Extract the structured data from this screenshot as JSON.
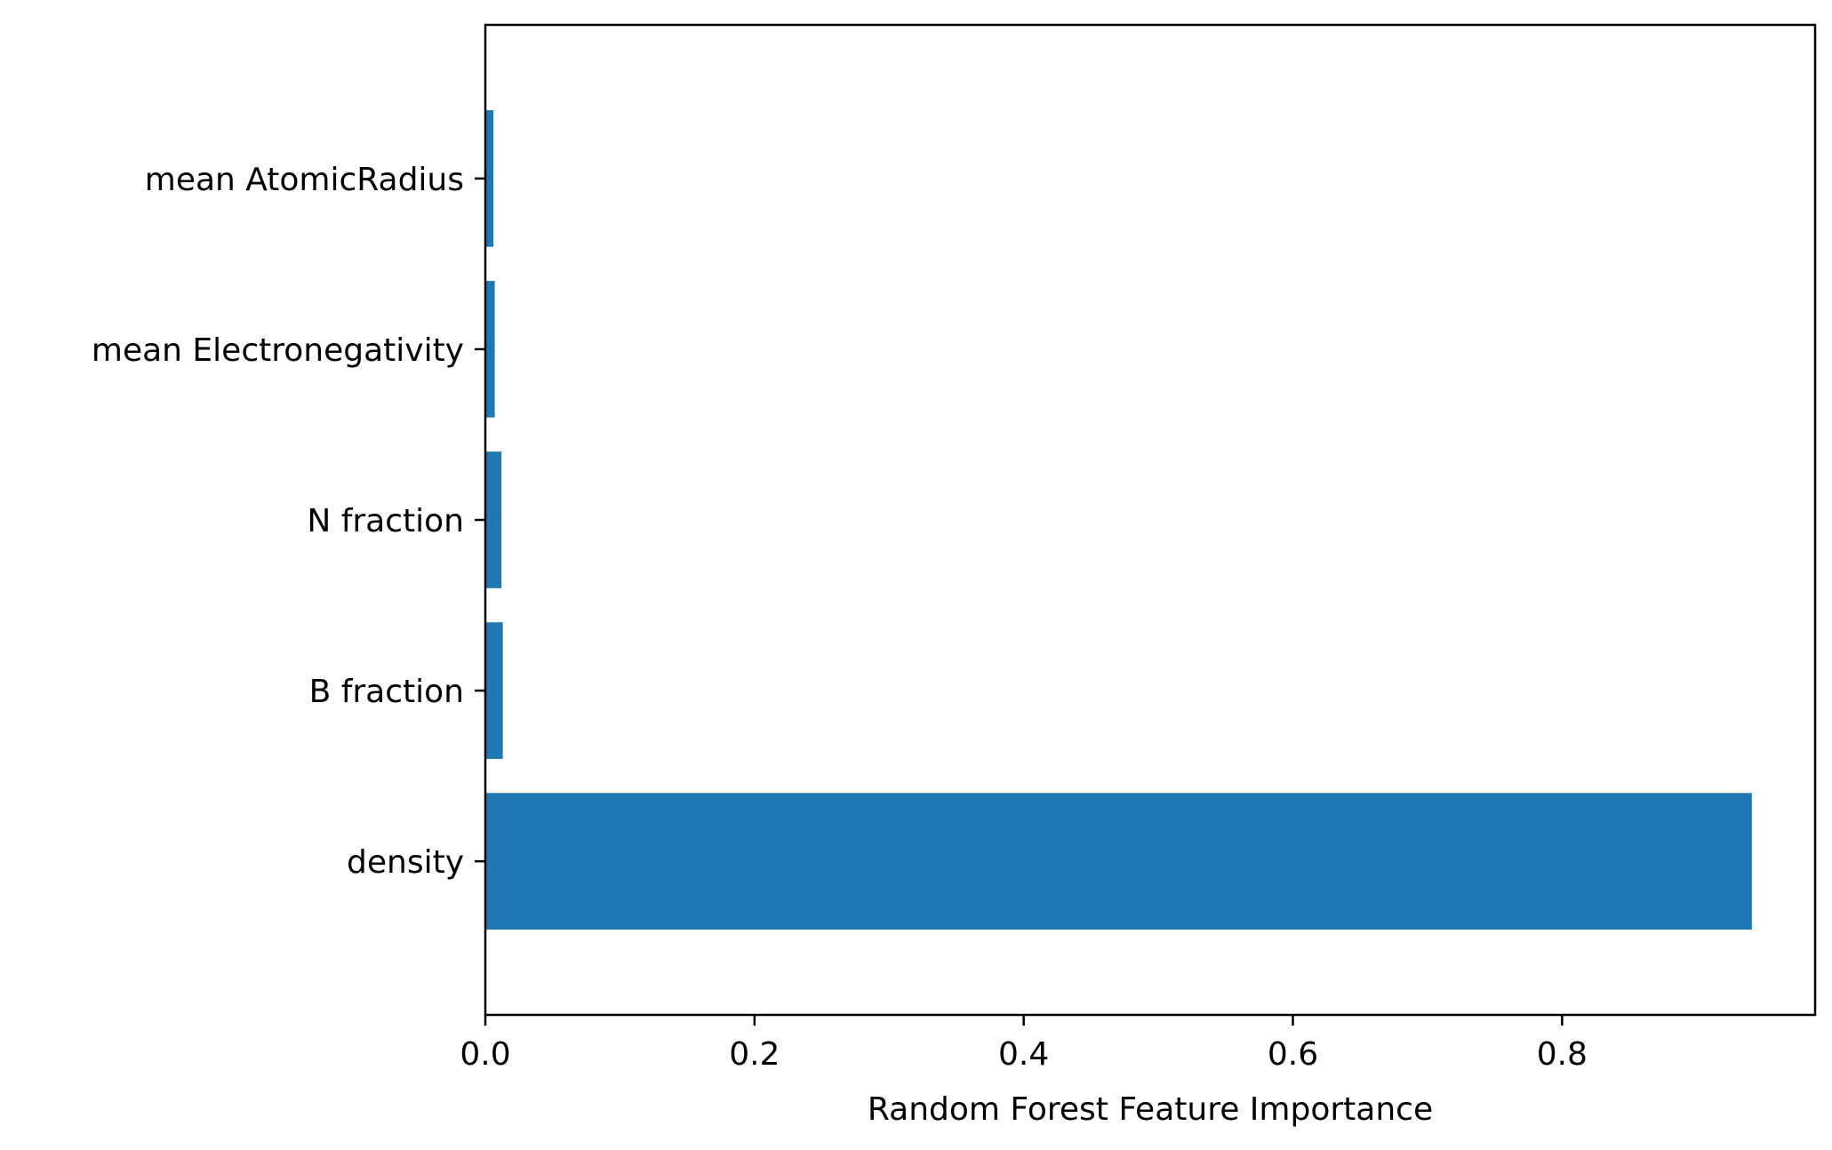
{
  "chart_data": {
    "type": "bar",
    "orientation": "horizontal",
    "categories": [
      "density",
      "B fraction",
      "N fraction",
      "mean Electronegativity",
      "mean AtomicRadius"
    ],
    "values": [
      0.941,
      0.013,
      0.012,
      0.007,
      0.006
    ],
    "title": "",
    "xlabel": "Random Forest Feature Importance",
    "ylabel": "",
    "xlim": [
      0.0,
      0.988
    ],
    "xticks": [
      0.0,
      0.2,
      0.4,
      0.6,
      0.8
    ],
    "xtick_labels": [
      "0.0",
      "0.2",
      "0.4",
      "0.6",
      "0.8"
    ],
    "grid": false,
    "legend": "none",
    "bar_color": "#1f77b4"
  }
}
